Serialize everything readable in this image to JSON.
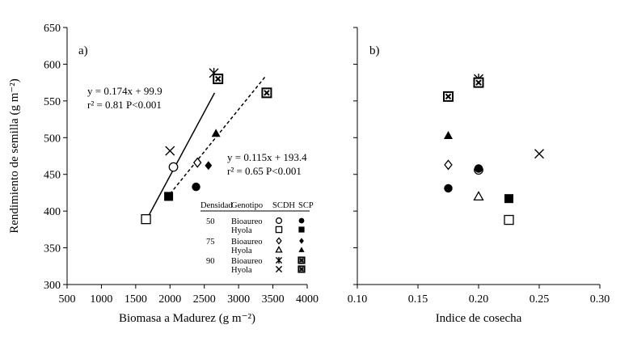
{
  "chart_data": [
    {
      "type": "scatter",
      "panel_label": "a)",
      "xlabel": "Biomasa a Madurez (g m⁻²)",
      "ylabel": "Rendimiento de semilla (g m⁻²)",
      "xlim": [
        500,
        4000
      ],
      "ylim": [
        300,
        650
      ],
      "xticks": [
        "500",
        "1000",
        "1500",
        "2000",
        "2500",
        "3000",
        "3500",
        "4000"
      ],
      "yticks": [
        "300",
        "350",
        "400",
        "450",
        "500",
        "550",
        "600",
        "650"
      ],
      "series": [
        {
          "name": "50 Bioaureo SCDH",
          "marker": "open-circle",
          "points": [
            [
              2050,
              460
            ]
          ]
        },
        {
          "name": "50 Bioaureo SCP",
          "marker": "filled-circle",
          "points": [
            [
              2380,
              433
            ]
          ]
        },
        {
          "name": "50 Hyola SCDH",
          "marker": "open-square",
          "points": [
            [
              1650,
              389
            ]
          ]
        },
        {
          "name": "50 Hyola SCP",
          "marker": "filled-square",
          "points": [
            [
              1980,
              420
            ]
          ]
        },
        {
          "name": "75 Bioaureo SCDH",
          "marker": "open-diamond",
          "points": [
            [
              2400,
              466
            ]
          ]
        },
        {
          "name": "75 Bioaureo SCP",
          "marker": "filled-diamond",
          "points": [
            [
              2560,
              462
            ]
          ]
        },
        {
          "name": "75 Hyola SCP",
          "marker": "filled-triangle",
          "points": [
            [
              2670,
              506
            ]
          ]
        },
        {
          "name": "90 Bioaureo SCDH",
          "marker": "asterisk",
          "points": [
            [
              2640,
              588
            ]
          ]
        },
        {
          "name": "90 Bioaureo SCP",
          "marker": "boxed-x",
          "points": [
            [
              2700,
              580
            ],
            [
              3410,
              561
            ]
          ]
        },
        {
          "name": "90 Hyola SCDH",
          "marker": "x",
          "points": [
            [
              2000,
              482
            ]
          ]
        }
      ],
      "fits": [
        {
          "equation": "y = 0.174x + 99.9",
          "stats": "r² = 0.81 P<0.001",
          "style": "solid",
          "x_range": [
            1650,
            2650
          ],
          "slope": 0.174,
          "intercept": 99.9
        },
        {
          "equation": "y = 0.115x + 193.4",
          "stats": "r² = 0.65 P<0.001",
          "style": "dashed",
          "x_range": [
            2000,
            3400
          ],
          "slope": 0.115,
          "intercept": 193.4
        }
      ],
      "legend": {
        "headers": [
          "Densidad",
          "Genotipo",
          "SCDH",
          "SCP"
        ],
        "rows": [
          {
            "densidad": "50",
            "genotipo": "Bioaureo",
            "scdh": "open-circle",
            "scp": "filled-circle"
          },
          {
            "densidad": "",
            "genotipo": "Hyola",
            "scdh": "open-square",
            "scp": "filled-square"
          },
          {
            "densidad": "75",
            "genotipo": "Bioaureo",
            "scdh": "open-diamond",
            "scp": "filled-diamond"
          },
          {
            "densidad": "",
            "genotipo": "Hyola",
            "scdh": "open-triangle",
            "scp": "filled-triangle"
          },
          {
            "densidad": "90",
            "genotipo": "Bioaureo",
            "scdh": "asterisk",
            "scp": "boxed-x"
          },
          {
            "densidad": "",
            "genotipo": "Hyola",
            "scdh": "x",
            "scp": "boxed-x"
          }
        ]
      }
    },
    {
      "type": "scatter",
      "panel_label": "b)",
      "xlabel": "Indice de cosecha",
      "xlim": [
        0.1,
        0.3
      ],
      "ylim": [
        300,
        650
      ],
      "xticks": [
        "0.10",
        "0.15",
        "0.20",
        "0.25",
        "0.30"
      ],
      "series": [
        {
          "name": "50 Bioaureo SCDH",
          "marker": "open-circle",
          "points": [
            [
              0.2,
              456
            ]
          ]
        },
        {
          "name": "50 Bioaureo SCP",
          "marker": "filled-circle",
          "points": [
            [
              0.175,
              431
            ],
            [
              0.2,
              458
            ]
          ]
        },
        {
          "name": "50 Hyola SCDH",
          "marker": "open-square",
          "points": [
            [
              0.225,
              388
            ]
          ]
        },
        {
          "name": "50 Hyola SCP",
          "marker": "filled-square",
          "points": [
            [
              0.225,
              417
            ]
          ]
        },
        {
          "name": "75 Bioaureo SCDH",
          "marker": "open-diamond",
          "points": [
            [
              0.175,
              463
            ]
          ]
        },
        {
          "name": "75 Bioaureo SCP",
          "marker": "filled-diamond",
          "points": [
            [
              0.2,
              458
            ]
          ]
        },
        {
          "name": "75 Hyola SCDH",
          "marker": "open-triangle",
          "points": [
            [
              0.2,
              420
            ]
          ]
        },
        {
          "name": "75 Hyola SCP",
          "marker": "filled-triangle",
          "points": [
            [
              0.175,
              503
            ]
          ]
        },
        {
          "name": "90 Bioaureo SCDH",
          "marker": "asterisk",
          "points": [
            [
              0.2,
              580
            ]
          ]
        },
        {
          "name": "90 Bioaureo SCP",
          "marker": "boxed-x",
          "points": [
            [
              0.175,
              556
            ],
            [
              0.2,
              575
            ]
          ]
        },
        {
          "name": "90 Hyola SCDH",
          "marker": "x",
          "points": [
            [
              0.25,
              478
            ]
          ]
        }
      ]
    }
  ]
}
